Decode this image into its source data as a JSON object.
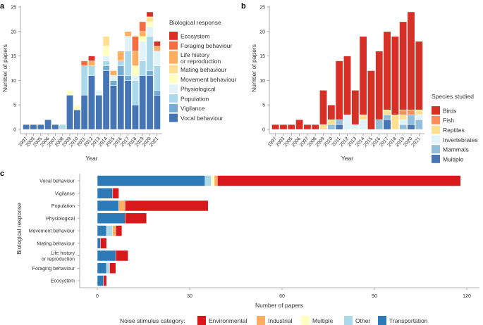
{
  "chart_data": [
    {
      "panel": "a",
      "type": "bar",
      "stacked": true,
      "xlabel": "Year",
      "ylabel": "Number of papers",
      "ylim": [
        0,
        25
      ],
      "yticks": [
        0,
        5,
        10,
        15,
        20,
        25
      ],
      "legend_title": "Biological response",
      "legend_position": "right",
      "categories": [
        "1997",
        "2003",
        "2005",
        "2006",
        "2007",
        "2008",
        "2009",
        "2010",
        "2011",
        "2012",
        "2013",
        "2014",
        "2015",
        "2016",
        "2017",
        "2018",
        "2019",
        "2020",
        "2021"
      ],
      "series": [
        {
          "name": "Vocal behaviour",
          "color": "#4575b4",
          "values": [
            1,
            1,
            1,
            2,
            1,
            0,
            7,
            4,
            7,
            11,
            7,
            12,
            9,
            11,
            10,
            5,
            11,
            11,
            7
          ]
        },
        {
          "name": "Vigilance",
          "color": "#74add1",
          "values": [
            0,
            0,
            0,
            0,
            0,
            0,
            0,
            0,
            0,
            0,
            0,
            1,
            1,
            2,
            1,
            0,
            0,
            1,
            1
          ]
        },
        {
          "name": "Population",
          "color": "#abd9e9",
          "values": [
            0,
            0,
            0,
            0,
            0,
            1,
            0,
            0,
            6,
            2,
            0,
            1,
            0,
            1,
            5,
            5,
            3,
            7,
            5
          ]
        },
        {
          "name": "Physiological",
          "color": "#e0f3f8",
          "values": [
            0,
            0,
            0,
            0,
            0,
            0,
            0,
            0,
            0,
            0,
            1,
            1,
            1,
            0,
            3,
            1,
            4,
            2,
            3
          ]
        },
        {
          "name": "Movement behaviour",
          "color": "#ffffbf",
          "values": [
            0,
            0,
            0,
            0,
            0,
            0,
            1,
            1,
            0,
            0,
            0,
            2,
            0,
            0,
            0,
            2,
            1,
            1,
            0
          ]
        },
        {
          "name": "Mating behaviour",
          "color": "#fee090",
          "values": [
            0,
            0,
            0,
            0,
            0,
            0,
            0,
            0,
            0,
            0,
            0,
            2,
            0,
            0,
            0,
            0,
            0,
            1,
            0
          ]
        },
        {
          "name": "Life history\nor reproduction",
          "color": "#fdae61",
          "values": [
            0,
            0,
            0,
            0,
            0,
            0,
            0,
            0,
            0,
            1,
            0,
            0,
            1,
            2,
            1,
            3,
            1,
            0,
            1
          ]
        },
        {
          "name": "Foraging behaviour",
          "color": "#f46d43",
          "values": [
            0,
            0,
            0,
            0,
            0,
            0,
            0,
            0,
            1,
            0,
            0,
            0,
            0,
            0,
            0,
            3,
            2,
            0,
            0
          ]
        },
        {
          "name": "Ecosystem",
          "color": "#d73027",
          "values": [
            0,
            0,
            0,
            0,
            0,
            0,
            0,
            0,
            0,
            1,
            0,
            0,
            0,
            0,
            0,
            0,
            0,
            1,
            1
          ]
        }
      ]
    },
    {
      "panel": "b",
      "type": "bar",
      "stacked": true,
      "xlabel": "Year",
      "ylabel": "Number of papers",
      "ylim": [
        0,
        25
      ],
      "yticks": [
        0,
        5,
        10,
        15,
        20,
        25
      ],
      "legend_title": "Species studied",
      "legend_position": "right",
      "categories": [
        "1997",
        "2003",
        "2005",
        "2006",
        "2007",
        "2008",
        "2009",
        "2010",
        "2011",
        "2012",
        "2013",
        "2014",
        "2015",
        "2016",
        "2017",
        "2018",
        "2019",
        "2020",
        "2021"
      ],
      "series": [
        {
          "name": "Multiple",
          "color": "#4575b4",
          "values": [
            0,
            0,
            0,
            0,
            0,
            0,
            0,
            0,
            1,
            0,
            0,
            0,
            0,
            0,
            2,
            0,
            0,
            1,
            0
          ]
        },
        {
          "name": "Mammals",
          "color": "#91bfdb",
          "values": [
            0,
            0,
            0,
            0,
            0,
            0,
            0,
            1,
            1,
            0,
            0,
            0,
            0,
            2,
            1,
            0,
            1,
            2,
            2
          ]
        },
        {
          "name": "Invertebrates",
          "color": "#e0f3f8",
          "values": [
            0,
            0,
            0,
            0,
            0,
            0,
            0,
            0,
            0,
            3,
            1,
            2,
            0,
            0,
            0,
            0,
            1,
            0,
            1
          ]
        },
        {
          "name": "Reptiles",
          "color": "#fee090",
          "values": [
            0,
            0,
            0,
            0,
            0,
            0,
            1,
            1,
            0,
            0,
            0,
            1,
            0,
            0,
            1,
            3,
            1,
            0,
            1
          ]
        },
        {
          "name": "Fish",
          "color": "#fc8d59",
          "values": [
            0,
            0,
            0,
            0,
            0,
            0,
            0,
            0,
            0,
            0,
            0,
            0,
            0,
            0,
            0,
            0,
            1,
            1,
            0
          ]
        },
        {
          "name": "Birds",
          "color": "#d73027",
          "values": [
            1,
            1,
            1,
            2,
            1,
            1,
            7,
            3,
            12,
            12,
            7,
            16,
            12,
            14,
            16,
            16,
            18,
            20,
            14
          ]
        }
      ]
    },
    {
      "panel": "c",
      "type": "bar",
      "orientation": "horizontal",
      "stacked": true,
      "xlabel": "Number of papers",
      "ylabel": "Biological response",
      "xlim": [
        0,
        120
      ],
      "xticks": [
        0,
        30,
        60,
        90,
        120
      ],
      "legend_title": "Noise stimulus category:",
      "legend_position": "bottom",
      "categories": [
        "Vocal behaviour",
        "Vigilance",
        "Population",
        "Physiological",
        "Movement behaviour",
        "Mating behaviour",
        "Life history\nor reproduction",
        "Foraging behaviour",
        "Ecosystem"
      ],
      "series": [
        {
          "name": "Transportation",
          "color": "#2c7bb6",
          "values": [
            35,
            5,
            7,
            9,
            3,
            1,
            6,
            3,
            2
          ]
        },
        {
          "name": "Other",
          "color": "#abd9e9",
          "values": [
            2,
            0,
            0,
            0,
            2,
            0,
            0,
            1,
            0
          ]
        },
        {
          "name": "Multiple",
          "color": "#ffffbf",
          "values": [
            1,
            0,
            0,
            0,
            0,
            0,
            0,
            0,
            0
          ]
        },
        {
          "name": "Industrial",
          "color": "#fdae61",
          "values": [
            1,
            0,
            2,
            0,
            1,
            0,
            0,
            0,
            0
          ]
        },
        {
          "name": "Environmental",
          "color": "#d7191c",
          "values": [
            79,
            2,
            27,
            7,
            2,
            2,
            4,
            2,
            1
          ]
        }
      ],
      "legend_order": [
        "Environmental",
        "Industrial",
        "Multiple",
        "Other",
        "Transportation"
      ]
    }
  ]
}
